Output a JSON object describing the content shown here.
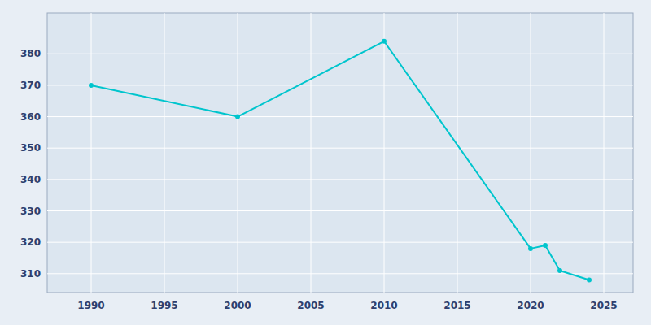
{
  "chart_data": {
    "type": "line",
    "x": [
      1990,
      2000,
      2010,
      2020,
      2021,
      2022,
      2024
    ],
    "values": [
      370,
      360,
      384,
      318,
      319,
      311,
      308
    ],
    "color": "#00c5cd",
    "marker": "circle",
    "xlim": [
      1987,
      2027
    ],
    "ylim": [
      304,
      393
    ],
    "xticks": [
      1990,
      1995,
      2000,
      2005,
      2010,
      2015,
      2020,
      2025
    ],
    "yticks": [
      310,
      320,
      330,
      340,
      350,
      360,
      370,
      380
    ],
    "grid": true
  }
}
